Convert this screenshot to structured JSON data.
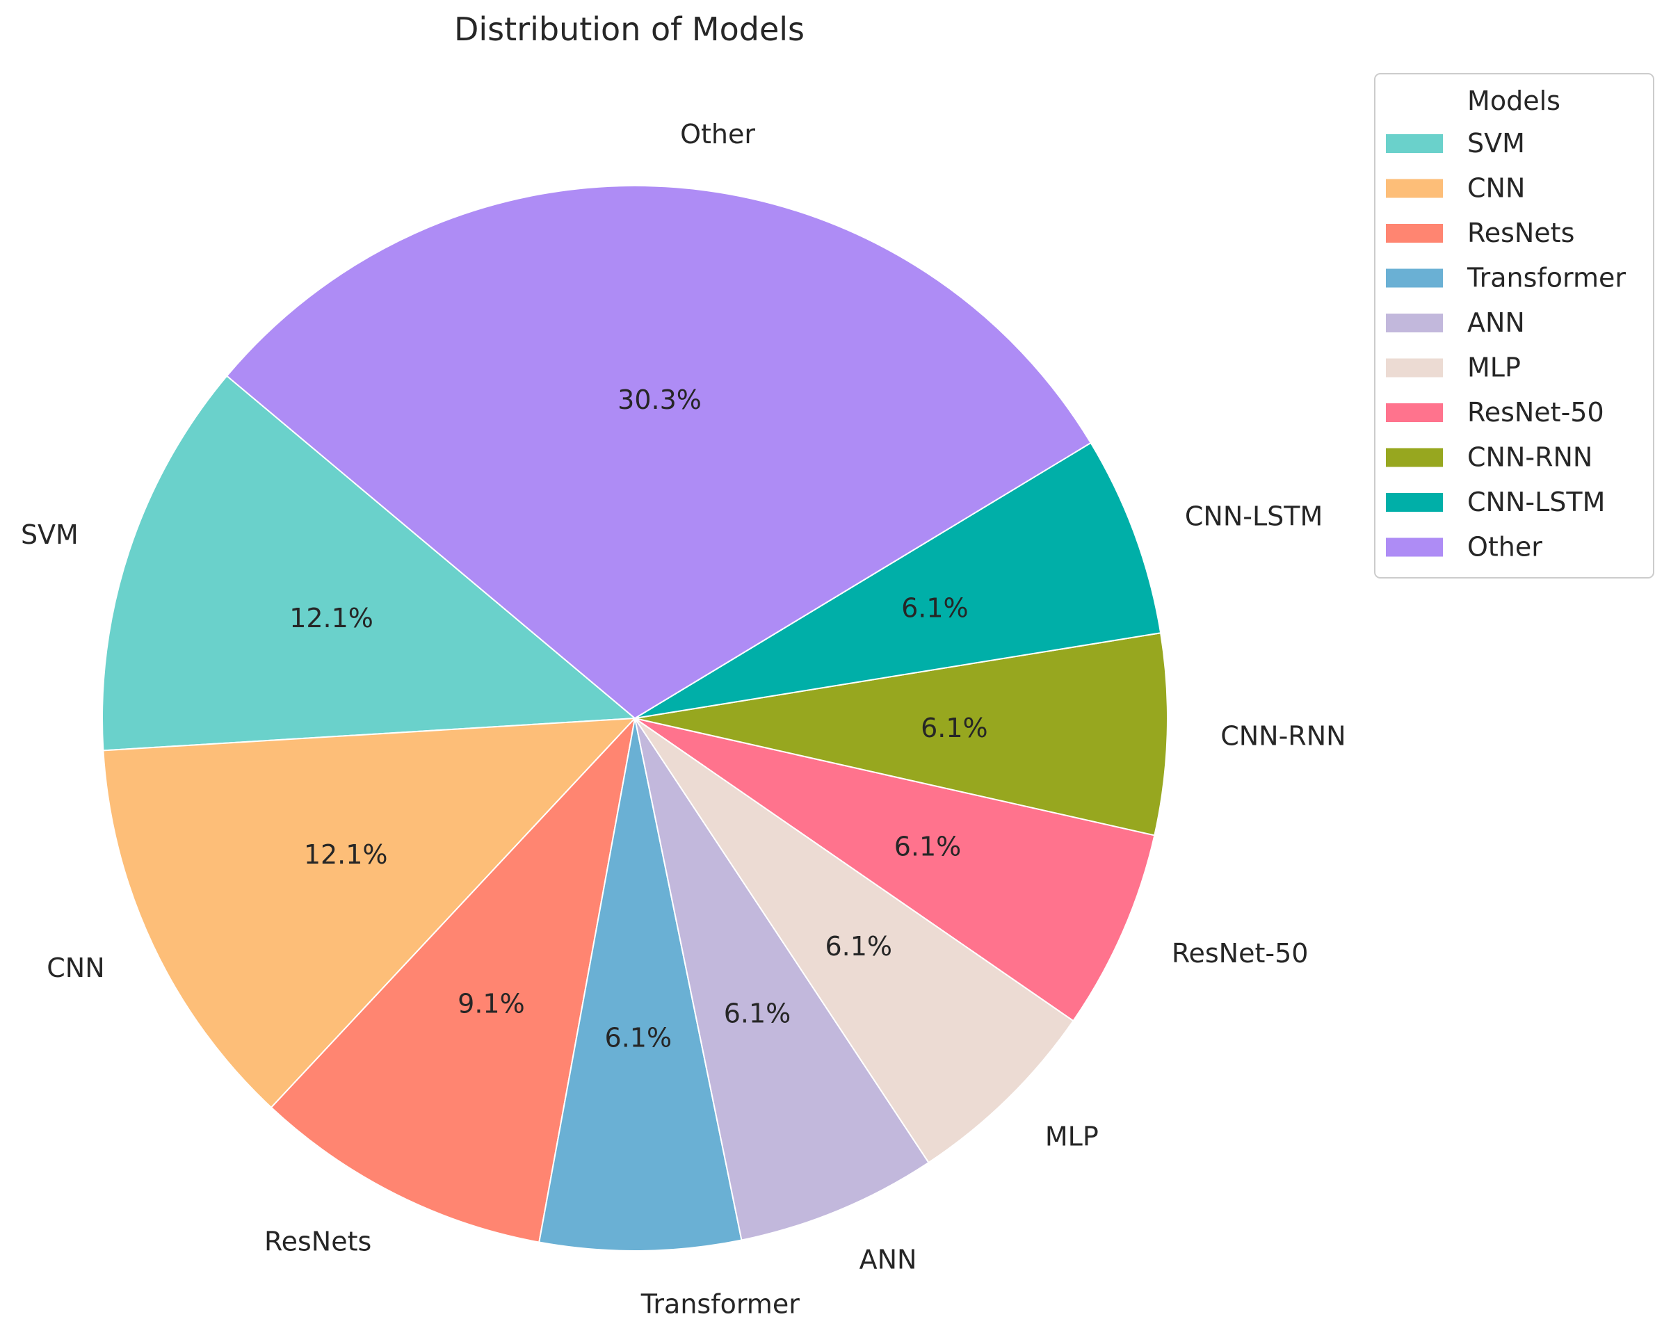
{
  "chart_data": {
    "type": "pie",
    "title": "Distribution of Models",
    "categories": [
      "SVM",
      "CNN",
      "ResNets",
      "Transformer",
      "ANN",
      "MLP",
      "ResNet-50",
      "CNN-RNN",
      "CNN-LSTM",
      "Other"
    ],
    "values": [
      12.1,
      12.1,
      9.1,
      6.1,
      6.1,
      6.1,
      6.1,
      6.1,
      6.1,
      30.3
    ],
    "value_labels": [
      "12.1%",
      "12.1%",
      "9.1%",
      "6.1%",
      "6.1%",
      "6.1%",
      "6.1%",
      "6.1%",
      "6.1%",
      "30.3%"
    ],
    "colors": [
      "#6ad1cb",
      "#fdbe78",
      "#ff8571",
      "#6ab0d4",
      "#c2b8dc",
      "#ecdbd3",
      "#ff738d",
      "#97a71f",
      "#00afa8",
      "#ae8cf5"
    ],
    "start_angle_deg": 140,
    "direction": "counterclockwise",
    "legend": {
      "title": "Models",
      "position": "upper right"
    }
  }
}
